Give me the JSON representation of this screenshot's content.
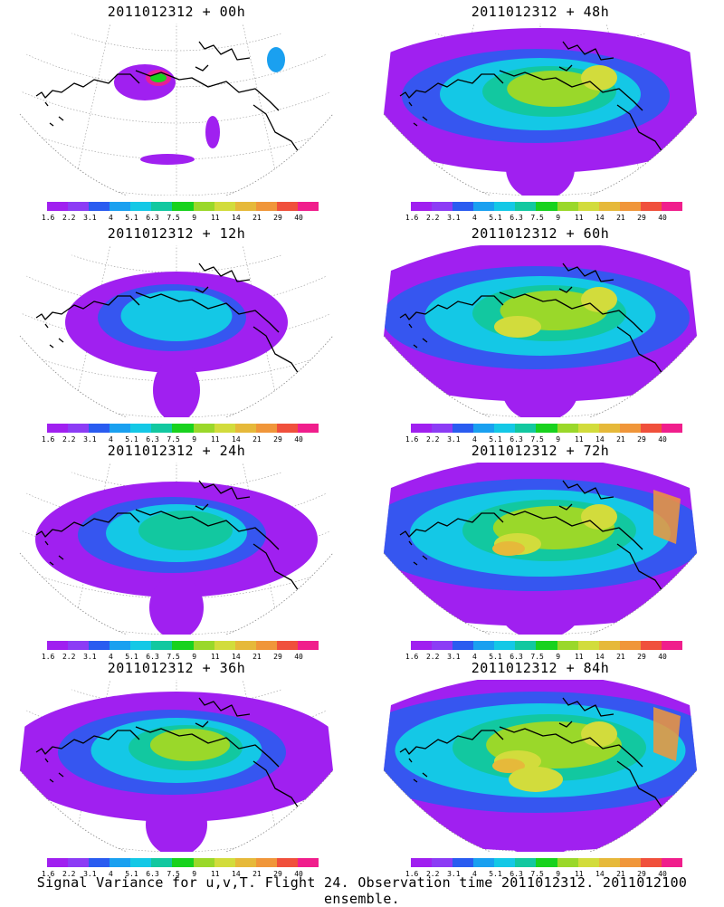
{
  "panels": [
    {
      "title": "2011012312 + 00h",
      "intensity": 0
    },
    {
      "title": "2011012312 + 48h",
      "intensity": 4
    },
    {
      "title": "2011012312 + 12h",
      "intensity": 1
    },
    {
      "title": "2011012312 + 60h",
      "intensity": 5
    },
    {
      "title": "2011012312 + 24h",
      "intensity": 2
    },
    {
      "title": "2011012312 + 72h",
      "intensity": 6
    },
    {
      "title": "2011012312 + 36h",
      "intensity": 3
    },
    {
      "title": "2011012312 + 84h",
      "intensity": 7
    }
  ],
  "colorbar": {
    "ticks": [
      "1.6",
      "2.2",
      "3.1",
      "4",
      "5.1",
      "6.3",
      "7.5",
      "9",
      "11",
      "14",
      "21",
      "29",
      "40"
    ],
    "colors": [
      "#a020f0",
      "#8c3cf5",
      "#2a5cf0",
      "#1aa0f0",
      "#14c8e6",
      "#12c8a0",
      "#18d21e",
      "#9ad82a",
      "#d2dc3c",
      "#e6b93a",
      "#f0963a",
      "#f0503c",
      "#f01e8c"
    ]
  },
  "footer": "Signal Variance for u,v,T. Flight 24. Observation time 2011012312. 2011012100 ensemble."
}
